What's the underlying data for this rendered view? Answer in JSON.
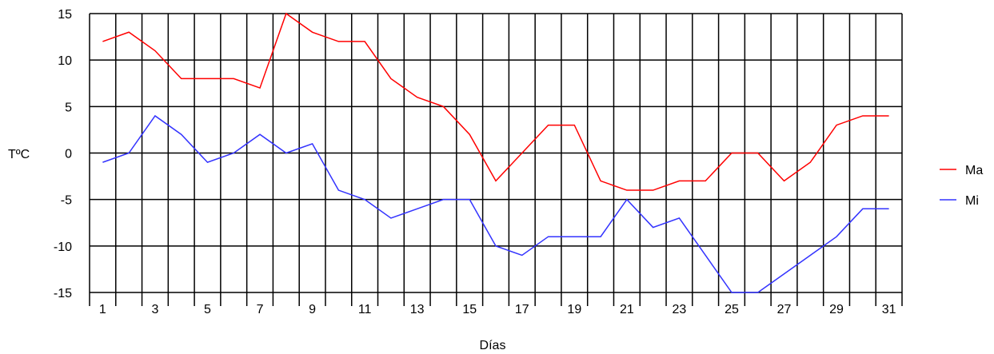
{
  "chart_data": {
    "type": "line",
    "title": "",
    "xlabel": "Días",
    "ylabel": "TºC",
    "ylim": [
      -15,
      15
    ],
    "yticks": [
      15,
      10,
      5,
      0,
      -5,
      -10,
      -15
    ],
    "x": [
      1,
      2,
      3,
      4,
      5,
      6,
      7,
      8,
      9,
      10,
      11,
      12,
      13,
      14,
      15,
      16,
      17,
      18,
      19,
      20,
      21,
      22,
      23,
      24,
      25,
      26,
      27,
      28,
      29,
      30,
      31
    ],
    "xtick_labels": [
      "1",
      "3",
      "5",
      "7",
      "9",
      "11",
      "13",
      "15",
      "17",
      "19",
      "21",
      "23",
      "25",
      "27",
      "29",
      "31"
    ],
    "grid": true,
    "legend_position": "right",
    "series": [
      {
        "name": "Ma",
        "color": "#ff0000",
        "values": [
          12,
          13,
          11,
          8,
          8,
          8,
          7,
          15,
          13,
          12,
          12,
          8,
          6,
          5,
          2,
          -3,
          0,
          3,
          3,
          -3,
          -4,
          -4,
          -3,
          -3,
          0,
          0,
          -3,
          -1,
          3,
          4,
          4
        ]
      },
      {
        "name": "Mi",
        "color": "#3333ff",
        "values": [
          -1,
          0,
          4,
          2,
          -1,
          0,
          2,
          0,
          1,
          -4,
          -5,
          -7,
          -6,
          -5,
          -5,
          -10,
          -11,
          -9,
          -9,
          -9,
          -5,
          -8,
          -7,
          -11,
          -15,
          -15,
          -13,
          -11,
          -9,
          -6,
          -6
        ]
      }
    ]
  }
}
